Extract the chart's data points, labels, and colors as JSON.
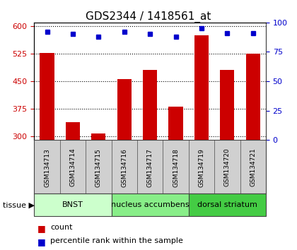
{
  "title": "GDS2344 / 1418561_at",
  "samples": [
    "GSM134713",
    "GSM134714",
    "GSM134715",
    "GSM134716",
    "GSM134717",
    "GSM134718",
    "GSM134719",
    "GSM134720",
    "GSM134721"
  ],
  "counts": [
    527,
    338,
    307,
    455,
    480,
    380,
    575,
    480,
    525
  ],
  "percentiles": [
    92,
    90,
    88,
    92,
    90,
    88,
    95,
    91,
    91
  ],
  "ylim_left": [
    290,
    610
  ],
  "ylim_right": [
    0,
    100
  ],
  "yticks_left": [
    300,
    375,
    450,
    525,
    600
  ],
  "yticks_right": [
    0,
    25,
    50,
    75,
    100
  ],
  "bar_color": "#cc0000",
  "dot_color": "#0000cc",
  "bar_bottom": 290,
  "groups": [
    {
      "label": "BNST",
      "start": 0,
      "end": 3,
      "color": "#ccffcc"
    },
    {
      "label": "nucleus accumbens",
      "start": 3,
      "end": 6,
      "color": "#88ee88"
    },
    {
      "label": "dorsal striatum",
      "start": 6,
      "end": 9,
      "color": "#44cc44"
    }
  ],
  "tissue_label": "tissue",
  "legend_count_label": "count",
  "legend_pct_label": "percentile rank within the sample",
  "background_color": "#ffffff",
  "plot_bg_color": "#ffffff",
  "tick_label_color_left": "#cc0000",
  "tick_label_color_right": "#0000cc",
  "title_fontsize": 11,
  "tick_fontsize": 8,
  "sample_fontsize": 6.5,
  "group_fontsize": 8,
  "legend_fontsize": 8
}
